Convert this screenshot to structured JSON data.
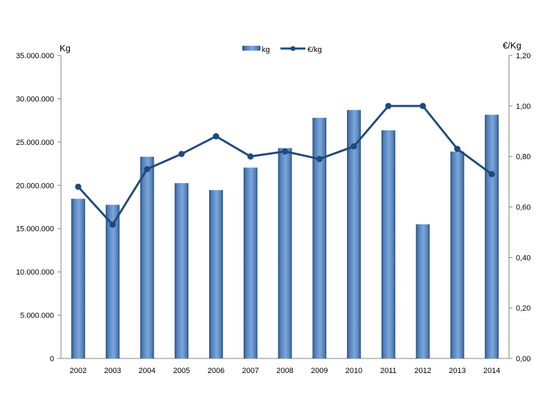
{
  "chart_data": {
    "type": "bar+line",
    "categories": [
      "2002",
      "2003",
      "2004",
      "2005",
      "2006",
      "2007",
      "2008",
      "2009",
      "2010",
      "2011",
      "2012",
      "2013",
      "2014"
    ],
    "series": [
      {
        "name": "kg",
        "type": "bar",
        "axis": "left",
        "color": "#4f81bd",
        "values": [
          18450000,
          17750000,
          23300000,
          20250000,
          19450000,
          22050000,
          24300000,
          27800000,
          28700000,
          26350000,
          15500000,
          23900000,
          28150000
        ]
      },
      {
        "name": "€/kg",
        "type": "line",
        "axis": "right",
        "color": "#1f497d",
        "values": [
          0.68,
          0.53,
          0.75,
          0.81,
          0.88,
          0.8,
          0.82,
          0.79,
          0.84,
          1.0,
          1.0,
          0.83,
          0.73
        ]
      }
    ],
    "ylabel_left": "Kg",
    "ylabel_right": "€/Kg",
    "ylim_left": [
      0,
      35000000
    ],
    "ylim_right": [
      0,
      1.2
    ],
    "yticks_left": [
      "0",
      "5.000.000",
      "10.000.000",
      "15.000.000",
      "20.000.000",
      "25.000.000",
      "30.000.000",
      "35.000.000"
    ],
    "yticks_right": [
      "0,00",
      "0,20",
      "0,40",
      "0,60",
      "0,80",
      "1,00",
      "1,20"
    ],
    "grid": false,
    "legend_position": "top-center"
  }
}
